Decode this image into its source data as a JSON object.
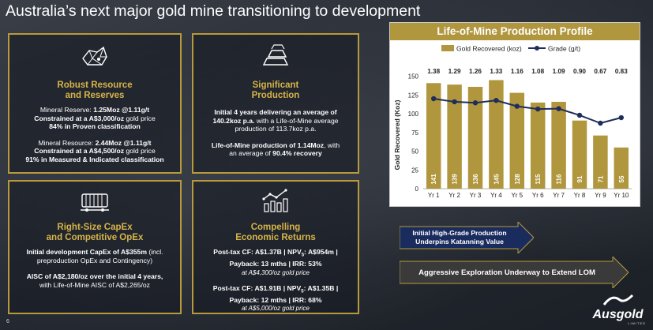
{
  "page": {
    "title": "Australia’s next major gold mine transitioning to development",
    "page_number": "6"
  },
  "cards": {
    "resource": {
      "heading_line1": "Robust Resource",
      "heading_line2": "and Reserves",
      "reserve_prefix": "Mineral Reserve: ",
      "reserve_value": "1.25Moz @1.11g/t",
      "reserve_constraint_bold": "Constrained at a A$3,000/oz",
      "reserve_constraint_rest": " gold price",
      "reserve_proven": "84% in Proven classification",
      "resource_prefix": "Mineral Resource: ",
      "resource_value": "2.44Moz @1.11g/t",
      "resource_constraint_bold": "Constrained at a A$4,500/oz",
      "resource_constraint_rest": " gold price",
      "resource_measured": "91% in Measured & Indicated classification"
    },
    "production": {
      "heading_line1": "Significant",
      "heading_line2": "Production",
      "line1_bold": "Initial 4 years delivering an average of",
      "line2_bold": "140.2koz p.a.",
      "line2_rest": " with a Life-of-Mine average",
      "line3": "production of 113.7koz p.a.",
      "line4_bold": "Life-of-Mine production of 1.14Moz",
      "line4_rest": ", with",
      "line5_pre": "an average of ",
      "line5_bold": "90.4% recovery"
    },
    "capex": {
      "heading_line1": "Right-Size CapEx",
      "heading_line2": "and Competitive OpEx",
      "line1_bold": "Initial development CapEx of A$355m",
      "line1_rest": " (incl.",
      "line2": "preproduction OpEx and Contingency)",
      "line3_bold": "AISC of A$2,180/oz over the initial 4 years,",
      "line4_pre": "with Life-of-Mine AISC of  ",
      "line4_val": "A$2,265/oz"
    },
    "returns": {
      "heading_line1": "Compelling",
      "heading_line2": "Economic Returns",
      "case1_line1_a": "Post-tax CF: A$1.37B | NPV",
      "case1_line1_sub": "5",
      "case1_line1_b": ": A$954m |",
      "case1_line2": "Payback: 13 mths | IRR: 53%",
      "case1_note": "at A$4,300/oz gold price",
      "case2_line1_a": "Post-tax CF: A$1.91B | NPV",
      "case2_line1_sub": "5",
      "case2_line1_b": ": A$1.35B |",
      "case2_line2": "Payback: 12 mths | IRR: 68%",
      "case2_note": "at A$5,000/oz gold price"
    }
  },
  "arrows": {
    "arrow1_line1": "Initial High-Grade Production",
    "arrow1_line2": "Underpins Katanning Value",
    "arrow2": "Aggressive Exploration Underway to Extend LOM"
  },
  "logo": {
    "name": "Ausgold",
    "tagline": "LIMITED"
  },
  "colors": {
    "gold": "#b89a3c",
    "bar": "#b0963d",
    "navy": "#1a2b5e",
    "line": "#1f2d5c"
  },
  "chart_data": {
    "type": "bar",
    "title": "Life-of-Mine Production Profile",
    "categories": [
      "Yr 1",
      "Yr 2",
      "Yr 3",
      "Yr 4",
      "Yr 5",
      "Yr 6",
      "Yr 7",
      "Yr 8",
      "Yr 9",
      "Yr 10"
    ],
    "series": [
      {
        "name": "Gold Recovered (koz)",
        "type": "bar",
        "values": [
          141,
          139,
          136,
          145,
          128,
          115,
          116,
          91,
          71,
          55
        ]
      },
      {
        "name": "Grade (g/t)",
        "type": "line",
        "values": [
          1.38,
          1.29,
          1.26,
          1.33,
          1.16,
          1.08,
          1.09,
          0.9,
          0.67,
          0.83
        ],
        "labels": [
          "1.38",
          "1.29",
          "1.26",
          "1.33",
          "1.16",
          "1.08",
          "1.09",
          "0.90",
          "0.67",
          "0.83"
        ]
      }
    ],
    "ylabel": "Gold Recovered (Koz)",
    "ylim": [
      0,
      175
    ],
    "yticks": [
      "0",
      "25",
      "50",
      "75",
      "100",
      "125",
      "150"
    ],
    "legend": "top"
  }
}
